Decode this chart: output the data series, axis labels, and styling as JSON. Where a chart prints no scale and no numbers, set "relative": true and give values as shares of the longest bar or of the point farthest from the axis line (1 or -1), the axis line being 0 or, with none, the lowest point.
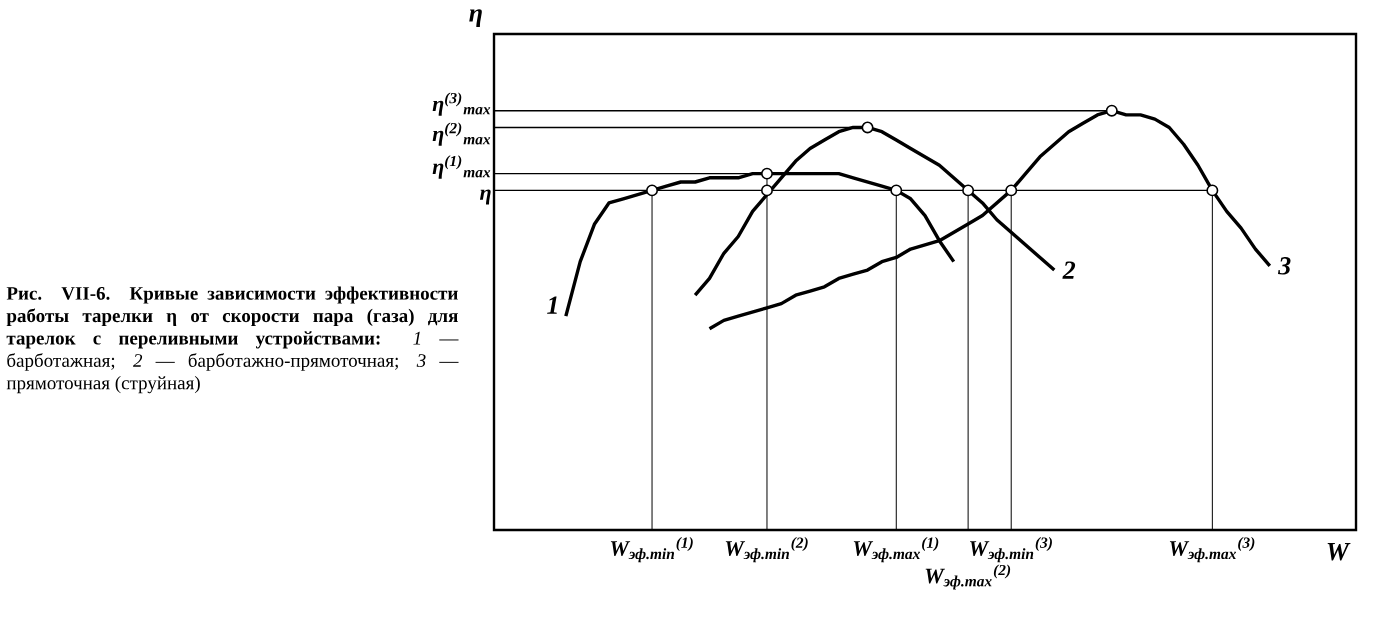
{
  "chart_data": {
    "type": "line",
    "relative": true,
    "grid": "x",
    "xlabel": "W",
    "ylabel": "η",
    "annotations": [
      "**Рис. VII-6. Кривые зависимости эффективности работы тарелки η от скорости пара (газа) для тарелок с переливными устройствами:** *1* — барботажная; *2* — барботажно-прямоточная; *3* — прямоточная (струйная)"
    ],
    "categories": [
      null,
      null,
      null,
      null,
      null,
      null,
      null,
      null,
      null,
      null,
      null,
      "W$_{эф.min}$$^{(1)}$",
      null,
      null,
      null,
      null,
      null,
      null,
      null,
      "W$_{эф.min}$$^{(2)}$",
      null,
      null,
      null,
      null,
      null,
      null,
      null,
      null,
      "W$_{эф.max}$$^{(1)}$",
      null,
      null,
      null,
      null,
      "W$_{эф.max}$$^{(2)}$",
      null,
      null,
      "W$_{эф.min}$$^{(3)}$",
      null,
      null,
      null,
      null,
      null,
      null,
      null,
      null,
      null,
      null,
      null,
      null,
      null,
      "W$_{эф.max}$$^{(3)}$",
      null,
      null,
      null,
      null,
      null,
      null,
      null,
      null,
      null
    ],
    "ref_lines": [
      {
        "axis": "y",
        "value": 0.81,
        "label": "η"
      },
      {
        "axis": "y",
        "value": 0.85,
        "label": "η$^{(1)}$$_{max}$"
      },
      {
        "axis": "y",
        "value": 0.96,
        "label": "η$^{(2)}$$_{max}$"
      },
      {
        "axis": "y",
        "value": 1.0,
        "label": "η$^{(3)}$$_{max}$"
      }
    ],
    "series": [
      {
        "name": "1",
        "color": "#000000",
        "values": [
          null,
          null,
          null,
          null,
          null,
          0.51,
          0.64,
          0.73,
          0.78,
          0.79,
          0.8,
          0.81,
          0.82,
          0.83,
          0.83,
          0.84,
          0.84,
          0.84,
          0.85,
          0.85,
          0.85,
          0.85,
          0.85,
          0.85,
          0.85,
          0.84,
          0.83,
          0.82,
          0.81,
          0.79,
          0.75,
          0.69,
          0.64,
          null,
          null,
          null,
          null,
          null,
          null,
          null,
          null,
          null,
          null,
          null,
          null,
          null,
          null,
          null,
          null,
          null,
          null,
          null,
          null,
          null,
          null,
          null,
          null,
          null,
          null,
          null
        ]
      },
      {
        "name": "2",
        "color": "#000000",
        "values": [
          null,
          null,
          null,
          null,
          null,
          null,
          null,
          null,
          null,
          null,
          null,
          null,
          null,
          null,
          0.56,
          0.6,
          0.66,
          0.7,
          0.76,
          0.8,
          0.84,
          0.88,
          0.91,
          0.93,
          0.95,
          0.96,
          0.96,
          0.95,
          0.93,
          0.91,
          0.89,
          0.87,
          0.84,
          0.81,
          0.78,
          0.74,
          0.71,
          0.68,
          0.65,
          0.62,
          null,
          null,
          null,
          null,
          null,
          null,
          null,
          null,
          null,
          null,
          null,
          null,
          null,
          null,
          null,
          null,
          null,
          null,
          null,
          null
        ]
      },
      {
        "name": "3",
        "color": "#000000",
        "values": [
          null,
          null,
          null,
          null,
          null,
          null,
          null,
          null,
          null,
          null,
          null,
          null,
          null,
          null,
          null,
          0.48,
          0.5,
          0.51,
          0.52,
          0.53,
          0.54,
          0.56,
          0.57,
          0.58,
          0.6,
          0.61,
          0.62,
          0.64,
          0.65,
          0.67,
          0.68,
          0.69,
          0.71,
          0.73,
          0.75,
          0.78,
          0.81,
          0.85,
          0.89,
          0.92,
          0.95,
          0.97,
          0.99,
          1.0,
          0.99,
          0.99,
          0.98,
          0.96,
          0.92,
          0.87,
          0.81,
          0.76,
          0.72,
          0.67,
          0.63,
          null,
          null,
          null,
          null,
          null
        ]
      },
      {
        "type": "scatter",
        "marker": "circle",
        "color": "#000000",
        "values": [
          null,
          null,
          null,
          null,
          null,
          null,
          null,
          null,
          null,
          null,
          null,
          0.81,
          null,
          null,
          null,
          null,
          null,
          null,
          null,
          0.81,
          null,
          null,
          null,
          null,
          null,
          null,
          0.96,
          null,
          0.81,
          null,
          null,
          null,
          null,
          0.81,
          null,
          null,
          0.81,
          null,
          null,
          null,
          null,
          null,
          null,
          1.0,
          null,
          null,
          null,
          null,
          null,
          null,
          0.81,
          null,
          null,
          null,
          null,
          null,
          null,
          null,
          null,
          null
        ]
      },
      {
        "type": "scatter",
        "marker": "circle",
        "color": "#000000",
        "values": [
          null,
          null,
          null,
          null,
          null,
          null,
          null,
          null,
          null,
          null,
          null,
          null,
          null,
          null,
          null,
          null,
          null,
          null,
          null,
          0.85,
          null,
          null,
          null,
          null,
          null,
          null,
          null,
          null,
          null,
          null,
          null,
          null,
          null,
          null,
          null,
          null,
          null,
          null,
          null,
          null,
          null,
          null,
          null,
          null,
          null,
          null,
          null,
          null,
          null,
          null,
          null,
          null,
          null,
          null,
          null,
          null,
          null,
          null,
          null,
          null
        ]
      }
    ]
  }
}
